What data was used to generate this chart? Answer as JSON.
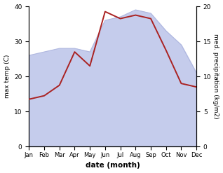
{
  "months": [
    "Jan",
    "Feb",
    "Mar",
    "Apr",
    "May",
    "Jun",
    "Jul",
    "Aug",
    "Sep",
    "Oct",
    "Nov",
    "Dec"
  ],
  "month_indices": [
    0,
    1,
    2,
    3,
    4,
    5,
    6,
    7,
    8,
    9,
    10,
    11
  ],
  "temp": [
    13.5,
    14.5,
    17.5,
    27.0,
    23.0,
    38.5,
    36.5,
    37.5,
    36.5,
    27.5,
    18.0,
    17.0
  ],
  "precip": [
    13.0,
    13.5,
    14.0,
    14.0,
    13.5,
    18.0,
    18.5,
    19.5,
    19.0,
    16.5,
    14.5,
    10.5
  ],
  "temp_color": "#aa2222",
  "precip_fill_color": "#c5ccec",
  "precip_edge_color": "#b0b8e0",
  "ylabel_left": "max temp (C)",
  "ylabel_right": "med. precipitation (kg/m2)",
  "xlabel": "date (month)",
  "ylim_left": [
    0,
    40
  ],
  "ylim_right": [
    0,
    20
  ],
  "yticks_left": [
    0,
    10,
    20,
    30,
    40
  ],
  "yticks_right": [
    0,
    5,
    10,
    15,
    20
  ],
  "background_color": "#ffffff"
}
